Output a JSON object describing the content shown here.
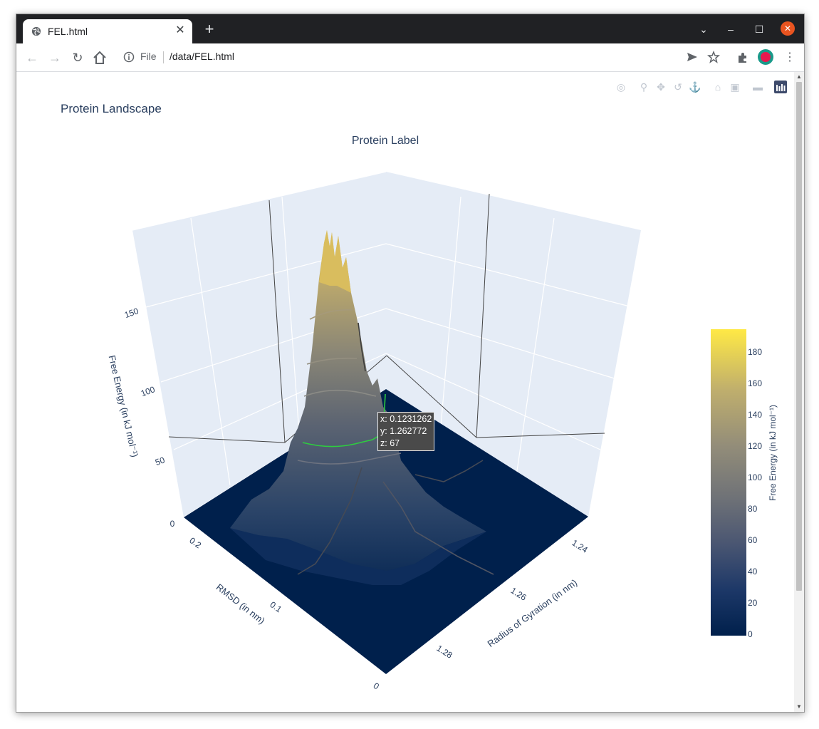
{
  "browser": {
    "tab_title": "FEL.html",
    "new_tab": "+",
    "tab_close": "✕",
    "url_scheme": "File",
    "url_path": "/data/FEL.html"
  },
  "plot": {
    "title": "Protein Landscape",
    "scene_title": "Protein Label",
    "z_axis_title": "Free Energy (in kJ mol⁻¹)",
    "x_axis_title": "RMSD (in nm)",
    "y_axis_title": "Radius of Gyration (in nm)",
    "colorbar_title": "Free Energy (in kJ mol⁻¹)",
    "colorscale": "Cividis",
    "colorscale_stops": [
      "#00204c",
      "#223e6c",
      "#555a70",
      "#7c7b78",
      "#a69d75",
      "#d3c164",
      "#ffe945"
    ],
    "hover": {
      "x": "x: 0.1231262",
      "y": "y: 1.262772",
      "z": "z: 67"
    }
  },
  "chart_data": {
    "type": "surface",
    "title": "Protein Landscape",
    "subtitle": "Protein Label",
    "xlabel": "RMSD (in nm)",
    "ylabel": "Radius of Gyration (in nm)",
    "zlabel": "Free Energy (in kJ mol⁻¹)",
    "x_ticks": [
      "0",
      "0.1",
      "0.2"
    ],
    "y_ticks": [
      "1.24",
      "1.26",
      "1.28"
    ],
    "z_ticks": [
      "0",
      "50",
      "100",
      "150"
    ],
    "colorbar_ticks": [
      "0",
      "20",
      "40",
      "60",
      "80",
      "100",
      "120",
      "140",
      "160",
      "180"
    ],
    "zlim": [
      0,
      195
    ],
    "peak": {
      "x": 0.12,
      "y": 1.262,
      "z": 190
    },
    "hover_point": {
      "x": 0.1231262,
      "y": 1.262772,
      "z": 67
    }
  }
}
